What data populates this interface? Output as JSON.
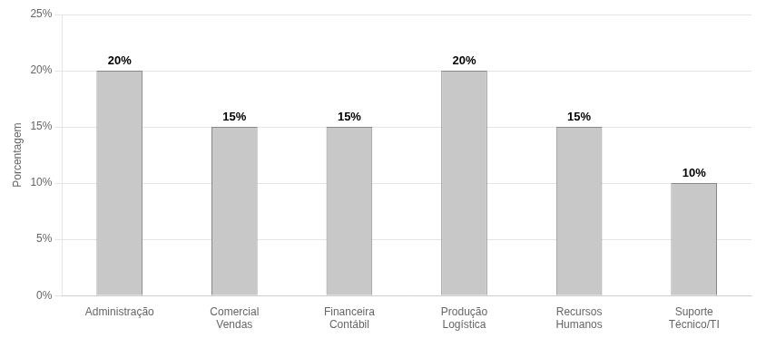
{
  "chart_data": {
    "type": "bar",
    "categories": [
      "Administração",
      "Comercial\nVendas",
      "Financeira\nContábil",
      "Produção\nLogística",
      "Recursos\nHumanos",
      "Suporte\nTécnico/TI"
    ],
    "values": [
      20,
      15,
      15,
      20,
      15,
      10
    ],
    "value_labels": [
      "20%",
      "15%",
      "15%",
      "20%",
      "15%",
      "10%"
    ],
    "data_labels": true,
    "color": "#c8c8c8",
    "ylabel": "Porcentagem",
    "ylim": [
      0,
      25
    ],
    "yticks": [
      {
        "value": 0,
        "label": "0%"
      },
      {
        "value": 5,
        "label": "5%"
      },
      {
        "value": 10,
        "label": "10%"
      },
      {
        "value": 15,
        "label": "15%"
      },
      {
        "value": 20,
        "label": "20%"
      },
      {
        "value": 25,
        "label": "25%"
      }
    ],
    "grid": true
  }
}
